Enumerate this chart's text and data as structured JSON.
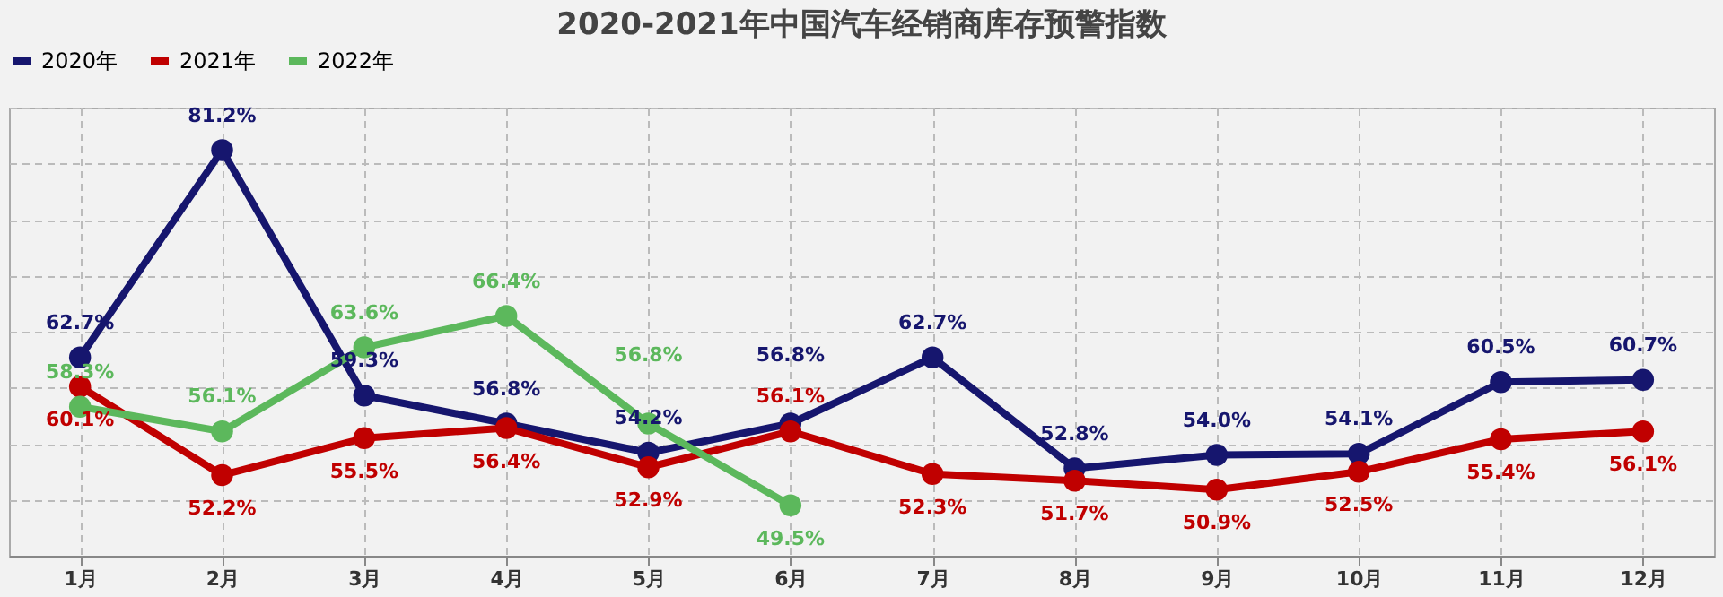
{
  "chart_data": {
    "type": "line",
    "title": "2020-2021年中国汽车经销商库存预警指数",
    "categories": [
      "1月",
      "2月",
      "3月",
      "4月",
      "5月",
      "6月",
      "7月",
      "8月",
      "9月",
      "10月",
      "11月",
      "12月"
    ],
    "series": [
      {
        "name": "2020年",
        "color": "#16166e",
        "values": [
          62.7,
          81.2,
          59.3,
          56.8,
          54.2,
          56.8,
          62.7,
          52.8,
          54.0,
          54.1,
          60.5,
          60.7
        ],
        "value_labels": [
          "62.7%",
          "81.2%",
          "59.3%",
          "56.8%",
          "54.2%",
          "56.8%",
          "62.7%",
          "52.8%",
          "54.0%",
          "54.1%",
          "60.5%",
          "60.7%"
        ]
      },
      {
        "name": "2021年",
        "color": "#c00000",
        "values": [
          60.1,
          52.2,
          55.5,
          56.4,
          52.9,
          56.1,
          52.3,
          51.7,
          50.9,
          52.5,
          55.4,
          56.1
        ],
        "value_labels": [
          "60.1%",
          "52.2%",
          "55.5%",
          "56.4%",
          "52.9%",
          "56.1%",
          "52.3%",
          "51.7%",
          "50.9%",
          "52.5%",
          "55.4%",
          "56.1%"
        ]
      },
      {
        "name": "2022年",
        "color": "#5cb85c",
        "values": [
          58.3,
          56.1,
          63.6,
          66.4,
          56.8,
          49.5,
          null,
          null,
          null,
          null,
          null,
          null
        ],
        "value_labels": [
          "58.3%",
          "56.1%",
          "63.6%",
          "66.4%",
          "56.8%",
          "49.5%",
          null,
          null,
          null,
          null,
          null,
          null
        ]
      }
    ],
    "grid": true,
    "legend": "top",
    "marker": "circle",
    "line_style": "solid"
  }
}
